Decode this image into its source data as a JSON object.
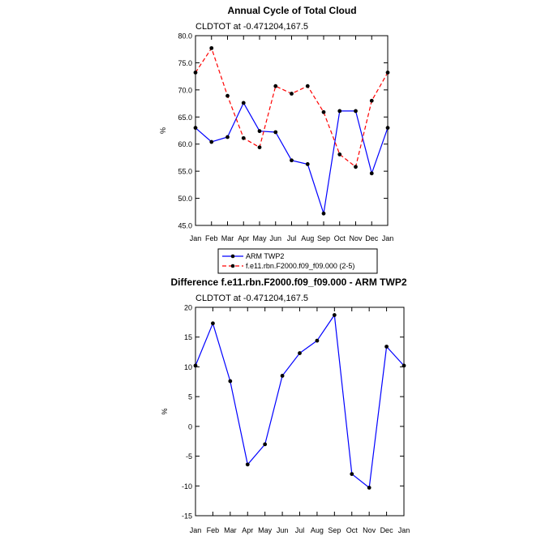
{
  "chart_data": [
    {
      "type": "line",
      "title": "Annual Cycle of Total Cloud",
      "subtitle": "CLDTOT at -0.471204,167.5",
      "ylabel": "%",
      "xlabel": "",
      "categories": [
        "Jan",
        "Feb",
        "Mar",
        "Apr",
        "May",
        "Jun",
        "Jul",
        "Aug",
        "Sep",
        "Oct",
        "Nov",
        "Dec",
        "Jan"
      ],
      "ylim": [
        45,
        80
      ],
      "yticks": [
        45.0,
        50.0,
        55.0,
        60.0,
        65.0,
        70.0,
        75.0,
        80.0
      ],
      "ytick_labels": [
        "45.0",
        "50.0",
        "55.0",
        "60.0",
        "65.0",
        "70.0",
        "75.0",
        "80.0"
      ],
      "grid": false,
      "legend_position": "bottom",
      "series": [
        {
          "name": "ARM TWP2",
          "color": "#0000ff",
          "dash": "solid",
          "values": [
            63.0,
            60.4,
            61.3,
            67.6,
            62.4,
            62.2,
            57.0,
            56.3,
            47.2,
            66.1,
            66.1,
            54.6,
            63.0
          ]
        },
        {
          "name": "f.e11.rbn.F2000.f09_f09.000 (2-5)",
          "color": "#ff0000",
          "dash": "dashed",
          "values": [
            73.2,
            77.7,
            68.9,
            61.1,
            59.4,
            70.7,
            69.3,
            70.7,
            65.9,
            58.1,
            55.8,
            68.0,
            73.2
          ]
        }
      ]
    },
    {
      "type": "line",
      "title": "Difference f.e11.rbn.F2000.f09_f09.000 - ARM TWP2",
      "subtitle": "CLDTOT at -0.471204,167.5",
      "ylabel": "%",
      "xlabel": "",
      "categories": [
        "Jan",
        "Feb",
        "Mar",
        "Apr",
        "May",
        "Jun",
        "Jul",
        "Aug",
        "Sep",
        "Oct",
        "Nov",
        "Dec",
        "Jan"
      ],
      "ylim": [
        -15,
        20
      ],
      "yticks": [
        -15,
        -10,
        -5,
        0,
        5,
        10,
        15,
        20
      ],
      "ytick_labels": [
        "-15",
        "-10",
        "-5",
        "0",
        "5",
        "10",
        "15",
        "20"
      ],
      "grid": false,
      "series": [
        {
          "color": "#0000ff",
          "dash": "solid",
          "values": [
            10.2,
            17.3,
            7.6,
            -6.4,
            -3.0,
            8.5,
            12.3,
            14.4,
            18.7,
            -8.0,
            -10.3,
            13.4,
            10.2
          ]
        }
      ]
    }
  ]
}
